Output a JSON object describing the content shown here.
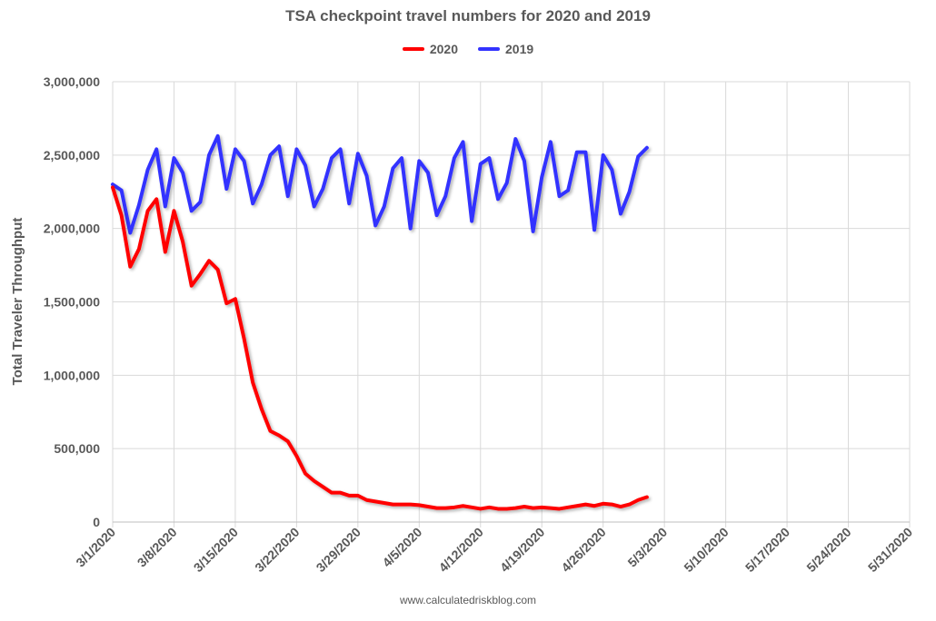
{
  "chart_data": {
    "type": "line",
    "title": "TSA checkpoint travel numbers for 2020 and 2019",
    "ylabel": "Total Traveler Throughput",
    "xlabel": "",
    "ylim": [
      0,
      3000000
    ],
    "y_ticks": [
      "0",
      "500,000",
      "1,000,000",
      "1,500,000",
      "2,000,000",
      "2,500,000",
      "3,000,000"
    ],
    "x_ticks": [
      "3/1/2020",
      "3/8/2020",
      "3/15/2020",
      "3/22/2020",
      "3/29/2020",
      "4/5/2020",
      "4/12/2020",
      "4/19/2020",
      "4/26/2020",
      "5/3/2020",
      "5/10/2020",
      "5/17/2020",
      "5/24/2020",
      "5/31/2020"
    ],
    "x_range": [
      "3/1/2020",
      "5/31/2020"
    ],
    "x_start": "3/1/2020",
    "grid": true,
    "legend": "top",
    "series": [
      {
        "name": "2020",
        "color": "#ff0000",
        "values": [
          2280000,
          2090000,
          1740000,
          1860000,
          2120000,
          2200000,
          1840000,
          2120000,
          1910000,
          1610000,
          1690000,
          1780000,
          1720000,
          1490000,
          1520000,
          1250000,
          950000,
          770000,
          620000,
          590000,
          550000,
          450000,
          330000,
          280000,
          240000,
          200000,
          200000,
          180000,
          180000,
          150000,
          140000,
          130000,
          120000,
          120000,
          120000,
          115000,
          105000,
          95000,
          95000,
          100000,
          110000,
          100000,
          90000,
          100000,
          90000,
          90000,
          95000,
          105000,
          95000,
          100000,
          95000,
          90000,
          100000,
          110000,
          120000,
          110000,
          125000,
          120000,
          105000,
          120000,
          150000,
          170000
        ]
      },
      {
        "name": "2019",
        "color": "#3333ff",
        "values": [
          2300000,
          2260000,
          1970000,
          2160000,
          2400000,
          2540000,
          2150000,
          2480000,
          2380000,
          2120000,
          2180000,
          2500000,
          2630000,
          2270000,
          2540000,
          2460000,
          2170000,
          2300000,
          2500000,
          2560000,
          2220000,
          2540000,
          2430000,
          2150000,
          2270000,
          2480000,
          2540000,
          2170000,
          2510000,
          2360000,
          2020000,
          2150000,
          2410000,
          2480000,
          2000000,
          2460000,
          2380000,
          2090000,
          2220000,
          2480000,
          2590000,
          2050000,
          2440000,
          2480000,
          2200000,
          2310000,
          2610000,
          2460000,
          1980000,
          2350000,
          2590000,
          2220000,
          2260000,
          2520000,
          2520000,
          1990000,
          2500000,
          2400000,
          2100000,
          2250000,
          2490000,
          2550000
        ]
      }
    ]
  },
  "footer": "www.calculatedriskblog.com"
}
